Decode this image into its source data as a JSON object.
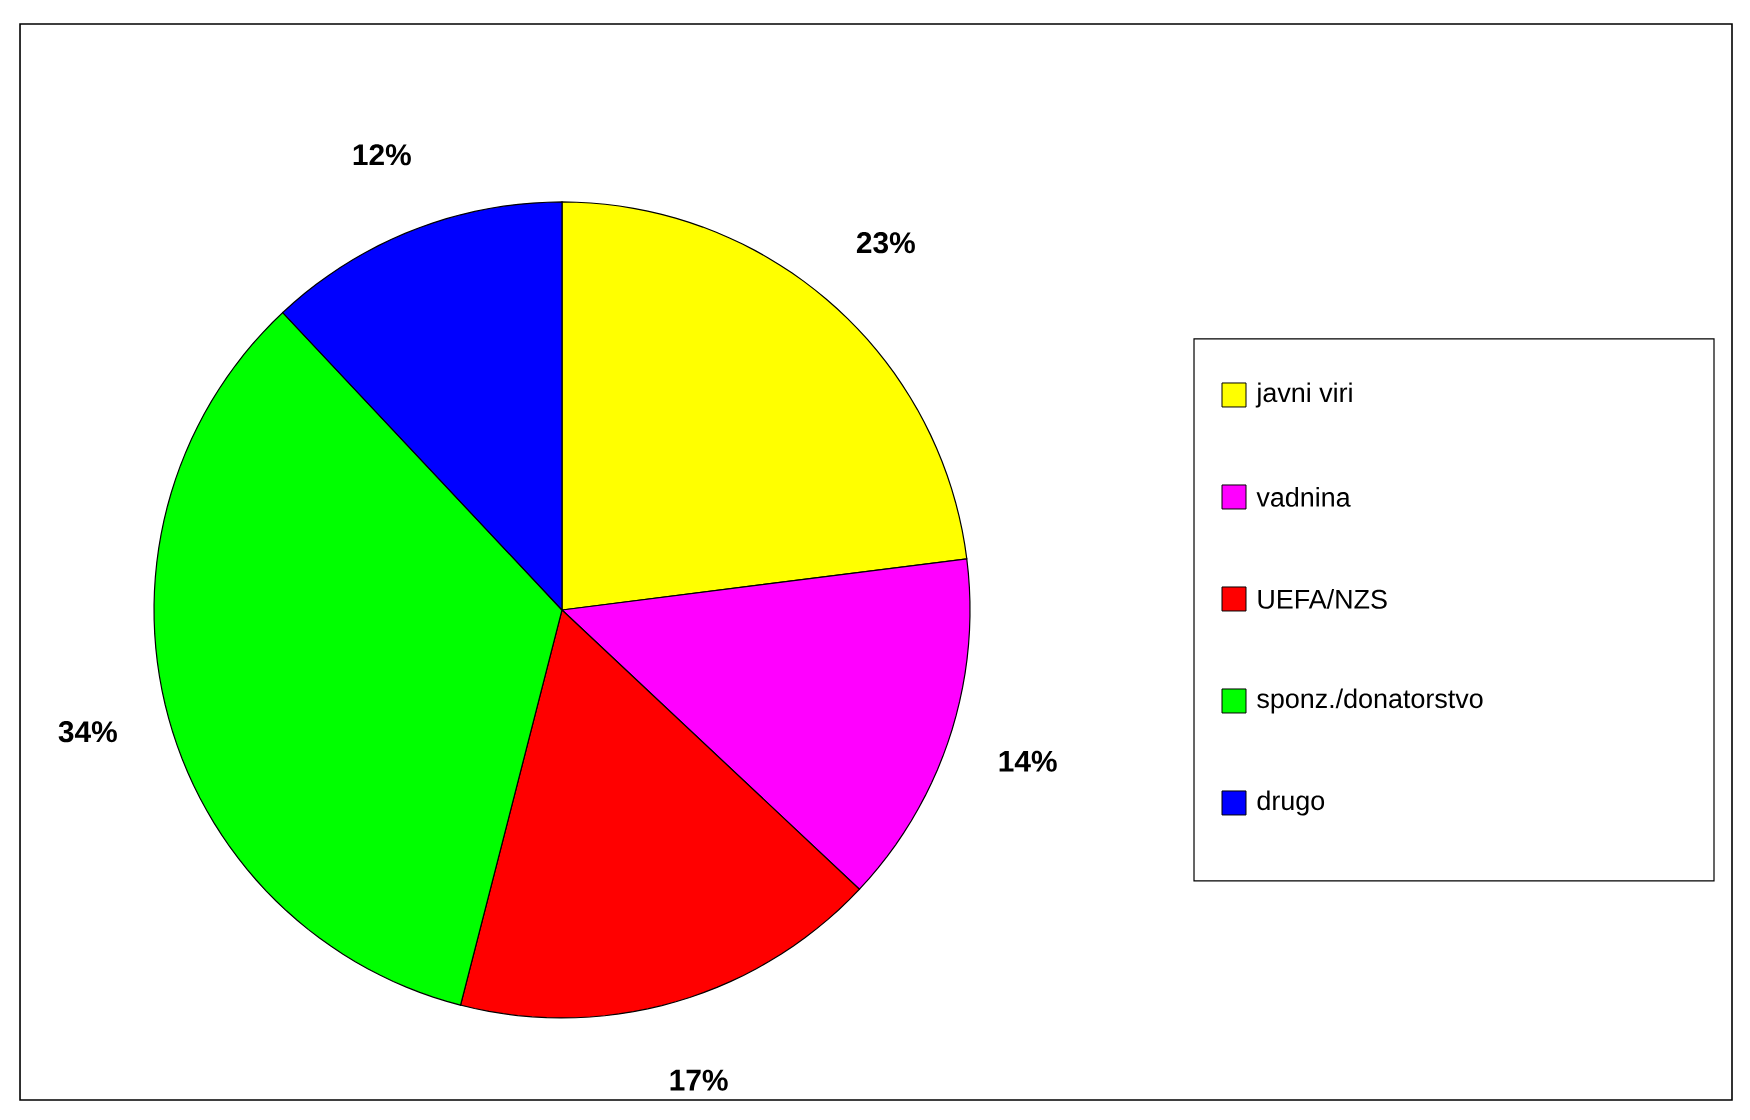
{
  "chart_data": {
    "type": "pie",
    "categories": [
      "javni viri",
      "vadnina",
      "UEFA/NZS",
      "sponz./donatorstvo",
      "drugo"
    ],
    "values": [
      23,
      14,
      17,
      34,
      12
    ],
    "value_labels": [
      "23%",
      "14%",
      "17%",
      "34%",
      "12%"
    ],
    "colors": [
      "#ffff00",
      "#ff00ff",
      "#ff0000",
      "#00ff00",
      "#0000ff"
    ],
    "legend": "right"
  }
}
